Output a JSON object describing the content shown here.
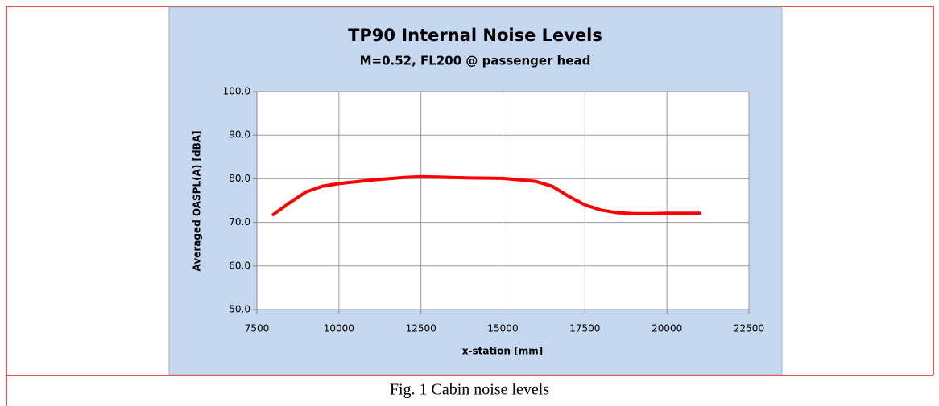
{
  "chart_data": {
    "type": "line",
    "title": "TP90 Internal Noise Levels",
    "subtitle": "M=0.52, FL200 @ passenger head",
    "x_label": "x-station [mm]",
    "y_label": "Averaged OASPL(A) [dBA]",
    "x": [
      8000,
      8500,
      9000,
      9500,
      10000,
      11000,
      12000,
      12500,
      13000,
      14000,
      15000,
      16000,
      16500,
      17000,
      17500,
      18000,
      18500,
      19000,
      19500,
      20000,
      21000
    ],
    "series": [
      {
        "name": "OASPL(A)",
        "color": "#ff0000",
        "values": [
          71.8,
          74.5,
          77,
          78.3,
          78.9,
          79.7,
          80.3,
          80.5,
          80.4,
          80.2,
          80.1,
          79.4,
          78.3,
          76,
          74,
          72.8,
          72.2,
          72.0,
          72.0,
          72.1,
          72.1
        ]
      }
    ],
    "xlim": [
      7500,
      22500
    ],
    "xticks": [
      7500,
      10000,
      12500,
      15000,
      17500,
      20000,
      22500
    ],
    "ylim": [
      50,
      100
    ],
    "yticks": [
      {
        "value": 50,
        "label": "50.0"
      },
      {
        "value": 60,
        "label": "60.0"
      },
      {
        "value": 70,
        "label": "70.0"
      },
      {
        "value": 80,
        "label": "80.0"
      },
      {
        "value": 90,
        "label": "90.0"
      },
      {
        "value": 100,
        "label": "100.0"
      }
    ],
    "grid": true
  },
  "caption": "Fig. 1  Cabin  noise  levels"
}
